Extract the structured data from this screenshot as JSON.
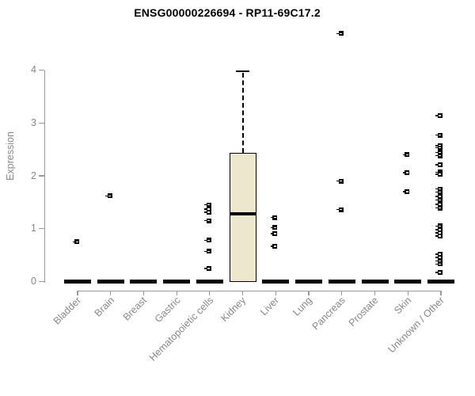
{
  "style": {
    "text_color": "#878787",
    "axis_color": "#9a9a9a",
    "box_fill": "#ede7ce",
    "point_color": "#000000"
  },
  "chart_data": {
    "type": "boxplot",
    "title": "ENSG00000226694 - RP11-69C17.2",
    "xlabel": "",
    "ylabel": "Expression",
    "axis_range": [
      0,
      4
    ],
    "yticks": [
      0,
      1,
      2,
      3,
      4
    ],
    "grid": false,
    "legend": false,
    "categories": [
      "Bladder",
      "Brain",
      "Breast",
      "Gastric",
      "Hematopoietic cells",
      "Kidney",
      "Liver",
      "Lung",
      "Pancreas",
      "Prostate",
      "Skin",
      "Unknown / Other"
    ],
    "boxes": [
      {
        "category": "Bladder",
        "q1": 0,
        "median": 0,
        "q3": 0,
        "whisker_low": 0,
        "whisker_high": 0,
        "outliers": [
          0.75
        ]
      },
      {
        "category": "Brain",
        "q1": 0,
        "median": 0,
        "q3": 0,
        "whisker_low": 0,
        "whisker_high": 0,
        "outliers": [
          1.62
        ]
      },
      {
        "category": "Breast",
        "q1": 0,
        "median": 0,
        "q3": 0,
        "whisker_low": 0,
        "whisker_high": 0,
        "outliers": []
      },
      {
        "category": "Gastric",
        "q1": 0,
        "median": 0,
        "q3": 0,
        "whisker_low": 0,
        "whisker_high": 0,
        "outliers": []
      },
      {
        "category": "Hematopoietic cells",
        "q1": 0,
        "median": 0,
        "q3": 0,
        "whisker_low": 0,
        "whisker_high": 0,
        "outliers": [
          1.45,
          1.37,
          1.31,
          1.15,
          0.78,
          0.57,
          0.25
        ]
      },
      {
        "category": "Kidney",
        "q1": 0,
        "median": 1.28,
        "q3": 2.43,
        "whisker_low": 0,
        "whisker_high": 3.98,
        "outliers": []
      },
      {
        "category": "Liver",
        "q1": 0,
        "median": 0,
        "q3": 0,
        "whisker_low": 0,
        "whisker_high": 0,
        "outliers": [
          1.21,
          1.02,
          0.91,
          0.67
        ]
      },
      {
        "category": "Lung",
        "q1": 0,
        "median": 0,
        "q3": 0,
        "whisker_low": 0,
        "whisker_high": 0,
        "outliers": []
      },
      {
        "category": "Pancreas",
        "q1": 0,
        "median": 0,
        "q3": 0,
        "whisker_low": 0,
        "whisker_high": 0,
        "outliers": [
          4.69,
          1.9,
          1.36
        ]
      },
      {
        "category": "Prostate",
        "q1": 0,
        "median": 0,
        "q3": 0,
        "whisker_low": 0,
        "whisker_high": 0,
        "outliers": []
      },
      {
        "category": "Skin",
        "q1": 0,
        "median": 0,
        "q3": 0,
        "whisker_low": 0,
        "whisker_high": 0,
        "outliers": [
          2.4,
          2.06,
          1.7
        ]
      },
      {
        "category": "Unknown / Other",
        "q1": 0,
        "median": 0,
        "q3": 0,
        "whisker_low": 0,
        "whisker_high": 0,
        "outliers": [
          3.14,
          2.77,
          2.57,
          2.53,
          2.44,
          2.38,
          2.21,
          2.07,
          2.03,
          1.75,
          1.69,
          1.61,
          1.54,
          1.46,
          1.39,
          1.05,
          0.98,
          0.92,
          0.86,
          0.52,
          0.46,
          0.39,
          0.33,
          0.17
        ]
      }
    ]
  }
}
